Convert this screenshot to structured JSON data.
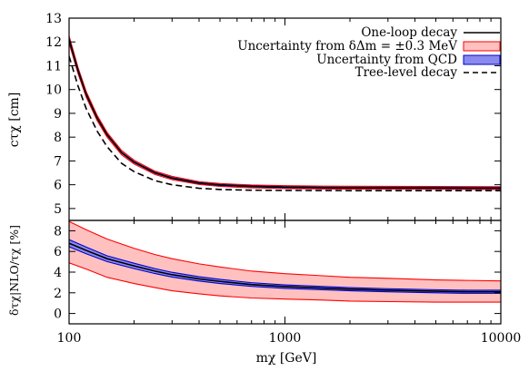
{
  "chart_data": [
    {
      "type": "line",
      "panel": "top",
      "ylabel": "cτχ [cm]",
      "xscale": "log",
      "xlim": [
        100,
        10000
      ],
      "ylim": [
        4.5,
        13
      ],
      "yticks": [
        5,
        6,
        7,
        8,
        9,
        10,
        11,
        12,
        13
      ],
      "ytick_labels": [
        "5",
        "6",
        "7",
        "8",
        "9",
        "10",
        "11",
        "12",
        "13"
      ],
      "legend_position": "top-right",
      "x": [
        100,
        110,
        120,
        135,
        150,
        175,
        200,
        250,
        300,
        400,
        500,
        700,
        1000,
        1500,
        2000,
        3000,
        5000,
        7000,
        10000
      ],
      "series": [
        {
          "name": "One-loop decay",
          "style": "solid",
          "color": "#000000",
          "values": [
            12.1,
            10.8,
            9.8,
            8.8,
            8.1,
            7.35,
            6.95,
            6.5,
            6.28,
            6.07,
            5.99,
            5.93,
            5.9,
            5.88,
            5.875,
            5.87,
            5.865,
            5.862,
            5.86
          ]
        },
        {
          "name": "Uncertainty from δΔm = ±0.3 MeV",
          "style": "band",
          "color": "#ffc0c0",
          "edge_color": "#ff0000",
          "lower": [
            11.95,
            10.67,
            9.68,
            8.69,
            8.0,
            7.26,
            6.87,
            6.43,
            6.21,
            6.01,
            5.93,
            5.87,
            5.84,
            5.82,
            5.815,
            5.81,
            5.805,
            5.802,
            5.8
          ],
          "upper": [
            12.25,
            10.93,
            9.92,
            8.91,
            8.2,
            7.44,
            7.03,
            6.57,
            6.35,
            6.13,
            6.05,
            5.99,
            5.96,
            5.94,
            5.935,
            5.93,
            5.925,
            5.922,
            5.92
          ]
        },
        {
          "name": "Uncertainty from QCD",
          "style": "band",
          "color": "#8a8aee",
          "edge_color": "#0000cc",
          "lower": [
            12.05,
            10.76,
            9.77,
            8.78,
            8.08,
            7.33,
            6.93,
            6.48,
            6.26,
            6.05,
            5.97,
            5.91,
            5.88,
            5.86,
            5.855,
            5.85,
            5.845,
            5.842,
            5.84
          ],
          "upper": [
            12.15,
            10.84,
            9.83,
            8.82,
            8.12,
            7.37,
            6.97,
            6.52,
            6.3,
            6.09,
            6.01,
            5.95,
            5.92,
            5.9,
            5.895,
            5.89,
            5.885,
            5.882,
            5.88
          ]
        },
        {
          "name": "Tree-level decay",
          "style": "dashed",
          "color": "#000000",
          "values": [
            11.4,
            10.15,
            9.2,
            8.25,
            7.6,
            6.9,
            6.55,
            6.17,
            6.0,
            5.85,
            5.8,
            5.77,
            5.76,
            5.755,
            5.752,
            5.75,
            5.75,
            5.75,
            5.75
          ]
        }
      ]
    },
    {
      "type": "line",
      "panel": "bottom",
      "xlabel": "mχ [GeV]",
      "ylabel": "δτχ|NLO/τχ [%]",
      "xscale": "log",
      "xlim": [
        100,
        10000
      ],
      "ylim": [
        -1,
        9
      ],
      "xticks": [
        100,
        1000,
        10000
      ],
      "xtick_labels": [
        "100",
        "1000",
        "10000"
      ],
      "yticks": [
        0,
        2,
        4,
        6,
        8
      ],
      "ytick_labels": [
        "0",
        "2",
        "4",
        "6",
        "8"
      ],
      "x": [
        100,
        120,
        150,
        200,
        250,
        300,
        400,
        500,
        700,
        1000,
        1500,
        2000,
        3000,
        5000,
        7000,
        10000
      ],
      "series": [
        {
          "name": "One-loop decay",
          "style": "solid",
          "color": "#000000",
          "values": [
            6.8,
            6.1,
            5.3,
            4.6,
            4.1,
            3.75,
            3.35,
            3.1,
            2.8,
            2.6,
            2.45,
            2.35,
            2.25,
            2.15,
            2.1,
            2.1
          ]
        },
        {
          "name": "Uncertainty from δΔm = ±0.3 MeV",
          "style": "band",
          "color": "#ffc0c0",
          "edge_color": "#ff0000",
          "lower": [
            4.9,
            4.3,
            3.5,
            2.9,
            2.5,
            2.2,
            1.9,
            1.7,
            1.5,
            1.4,
            1.3,
            1.2,
            1.15,
            1.1,
            1.1,
            1.1
          ],
          "upper": [
            8.9,
            8.1,
            7.2,
            6.3,
            5.7,
            5.3,
            4.8,
            4.5,
            4.1,
            3.85,
            3.65,
            3.5,
            3.4,
            3.25,
            3.2,
            3.15
          ]
        },
        {
          "name": "Uncertainty from QCD",
          "style": "band",
          "color": "#8a8aee",
          "edge_color": "#0000cc",
          "lower": [
            6.45,
            5.78,
            5.02,
            4.34,
            3.86,
            3.52,
            3.14,
            2.9,
            2.62,
            2.43,
            2.29,
            2.2,
            2.1,
            2.0,
            1.95,
            1.95
          ],
          "upper": [
            7.15,
            6.42,
            5.58,
            4.86,
            4.34,
            3.98,
            3.56,
            3.3,
            2.98,
            2.77,
            2.61,
            2.5,
            2.4,
            2.3,
            2.25,
            2.25
          ]
        }
      ]
    }
  ]
}
